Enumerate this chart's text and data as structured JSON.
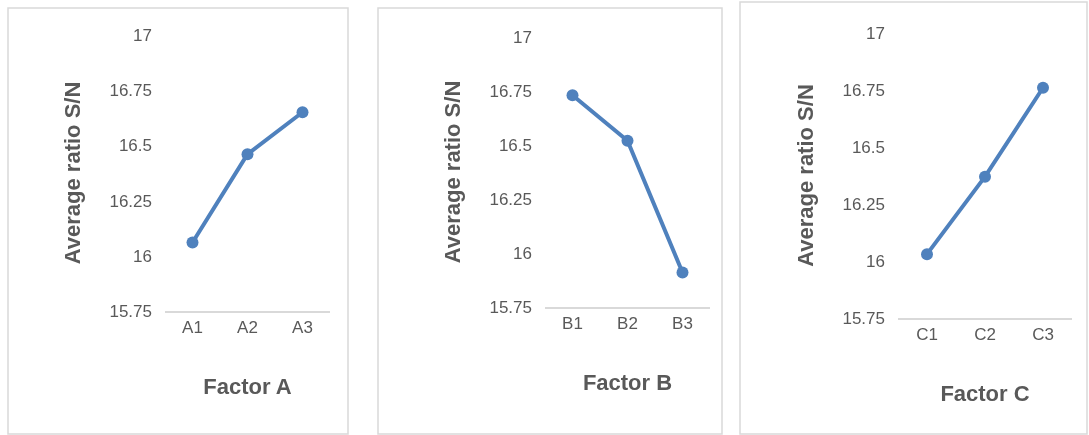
{
  "chart_data": [
    {
      "type": "line",
      "xlabel": "Factor A",
      "ylabel": "Average ratio S/N",
      "categories": [
        "A1",
        "A2",
        "A3"
      ],
      "values": [
        16.06,
        16.46,
        16.65
      ],
      "color": "#4f81bd",
      "ylim": [
        15.75,
        17
      ],
      "yticks": [
        15.75,
        16,
        16.25,
        16.5,
        16.75,
        17
      ],
      "marker": "circle"
    },
    {
      "type": "line",
      "xlabel": "Factor B",
      "ylabel": "Average ratio S/N",
      "categories": [
        "B1",
        "B2",
        "B3"
      ],
      "values": [
        16.73,
        16.52,
        15.91
      ],
      "color": "#4f81bd",
      "ylim": [
        15.75,
        17
      ],
      "yticks": [
        15.75,
        16,
        16.25,
        16.5,
        16.75,
        17
      ],
      "marker": "circle"
    },
    {
      "type": "line",
      "xlabel": "Factor C",
      "ylabel": "Average ratio S/N",
      "categories": [
        "C1",
        "C2",
        "C3"
      ],
      "values": [
        16.03,
        16.37,
        16.76
      ],
      "color": "#4f81bd",
      "ylim": [
        15.75,
        17
      ],
      "yticks": [
        15.75,
        16,
        16.25,
        16.5,
        16.75,
        17
      ],
      "marker": "circle"
    }
  ]
}
